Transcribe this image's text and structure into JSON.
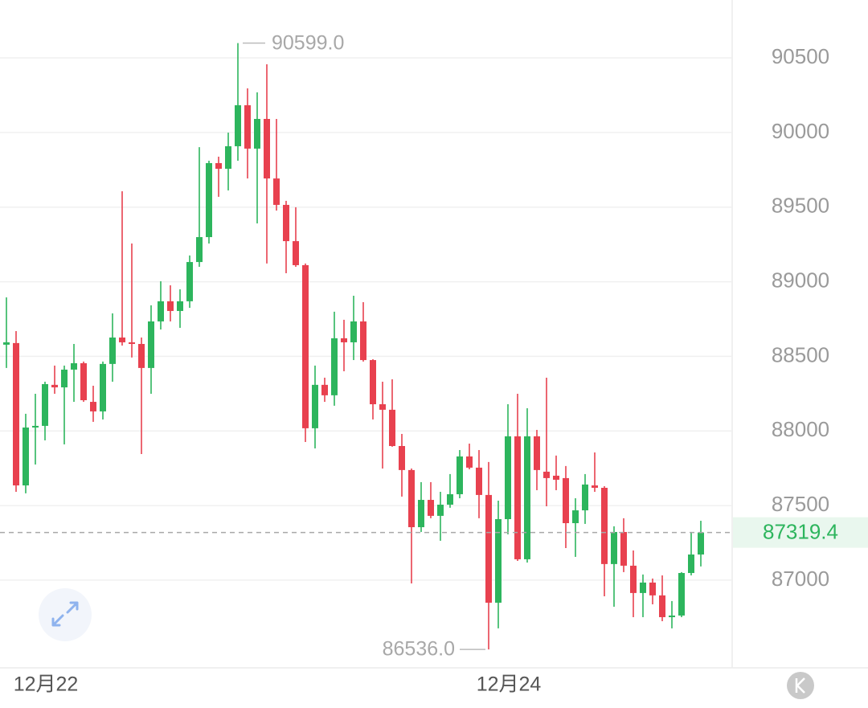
{
  "chart_data": {
    "type": "candlestick",
    "up_color": "#2db55d",
    "down_color": "#e8414f",
    "categories": [
      null,
      null,
      null,
      null,
      "12月22",
      null,
      null,
      null,
      null,
      null,
      null,
      null,
      null,
      null,
      null,
      null,
      null,
      null,
      null,
      null,
      null,
      null,
      null,
      null,
      null,
      null,
      null,
      null,
      null,
      null,
      null,
      null,
      null,
      null,
      null,
      null,
      null,
      null,
      null,
      null,
      null,
      null,
      null,
      null,
      null,
      null,
      null,
      null,
      null,
      null,
      null,
      null,
      "12月24",
      null,
      null,
      null,
      null,
      null,
      null,
      null,
      null,
      null,
      null,
      null,
      null,
      null,
      null,
      null,
      null,
      null,
      null,
      null,
      null
    ],
    "open": [
      88578,
      88589,
      87635,
      88023,
      88034,
      88309,
      88292,
      88411,
      88454,
      88195,
      88131,
      88449,
      88626,
      88594,
      88583,
      88422,
      88734,
      88869,
      88804,
      88869,
      89132,
      89299,
      89795,
      89757,
      89908,
      90183,
      89892,
      90091,
      89692,
      89515,
      89272,
      89111,
      88018,
      88309,
      88239,
      88621,
      88594,
      88734,
      88475,
      88179,
      88142,
      87899,
      87738,
      87355,
      87538,
      87431,
      87506,
      87576,
      87829,
      87754,
      87571,
      86849,
      87409,
      87964,
      87140,
      87964,
      87727,
      87700,
      87684,
      87382,
      87468,
      87635,
      87619,
      87108,
      87323,
      87097,
      86914,
      86984,
      86898,
      86752,
      86763,
      87048,
      87172
    ],
    "high": [
      88895,
      88669,
      88115,
      88249,
      88330,
      88438,
      88438,
      88583,
      88465,
      88303,
      88465,
      88788,
      89606,
      89256,
      88626,
      88842,
      89003,
      88976,
      88949,
      89176,
      89902,
      89811,
      89838,
      89999,
      90599,
      90296,
      90269,
      90457,
      90091,
      89542,
      89499,
      89122,
      88438,
      88357,
      88799,
      88745,
      88906,
      88863,
      88481,
      88330,
      88346,
      87980,
      87748,
      87657,
      87657,
      87592,
      87711,
      87872,
      87915,
      87872,
      87792,
      87533,
      88179,
      88249,
      88152,
      88007,
      88357,
      87835,
      87765,
      87549,
      87711,
      87856,
      87630,
      87361,
      87415,
      87199,
      87038,
      87011,
      87032,
      86860,
      87054,
      87323,
      87398
    ],
    "low": [
      88422,
      87592,
      87582,
      87775,
      87937,
      88249,
      87910,
      88195,
      88195,
      88061,
      88077,
      88330,
      88572,
      88492,
      87845,
      88249,
      88680,
      88734,
      88691,
      88825,
      89100,
      89256,
      89569,
      89612,
      89811,
      89692,
      89391,
      89122,
      89477,
      89057,
      89100,
      87926,
      87883,
      88195,
      88169,
      88400,
      88475,
      88465,
      88077,
      87748,
      87894,
      87560,
      86978,
      87323,
      87415,
      87264,
      87485,
      87549,
      87743,
      87415,
      86536,
      86677,
      87307,
      87129,
      87118,
      87603,
      87495,
      87603,
      87215,
      87156,
      87377,
      87592,
      86892,
      86822,
      87054,
      86752,
      86752,
      86838,
      86725,
      86677,
      86752,
      87032,
      87092
    ],
    "close": [
      88594,
      87635,
      88023,
      88034,
      88314,
      88292,
      88411,
      88454,
      88206,
      88131,
      88449,
      88626,
      88594,
      88583,
      88422,
      88734,
      88869,
      88804,
      88869,
      89132,
      89299,
      89795,
      89757,
      89908,
      90183,
      89892,
      90091,
      89692,
      89515,
      89272,
      89111,
      88018,
      88309,
      88239,
      88621,
      88594,
      88734,
      88475,
      88179,
      88142,
      87899,
      87738,
      87355,
      87538,
      87431,
      87506,
      87576,
      87829,
      87754,
      87571,
      86849,
      87409,
      87964,
      87140,
      87964,
      87738,
      87684,
      87673,
      87382,
      87468,
      87641,
      87619,
      87108,
      87323,
      87097,
      86914,
      86984,
      86898,
      86752,
      86763,
      87048,
      87172,
      87319.4
    ],
    "ylim": [
      86418,
      90888
    ],
    "yticks": [
      87000,
      87500,
      88000,
      88500,
      89000,
      89500,
      90000,
      90500
    ],
    "grid": true,
    "last_price": 87319.4,
    "max_label": {
      "value": 90599,
      "label": "90599.0"
    },
    "min_label": {
      "value": 86536,
      "label": "86536.0"
    }
  }
}
